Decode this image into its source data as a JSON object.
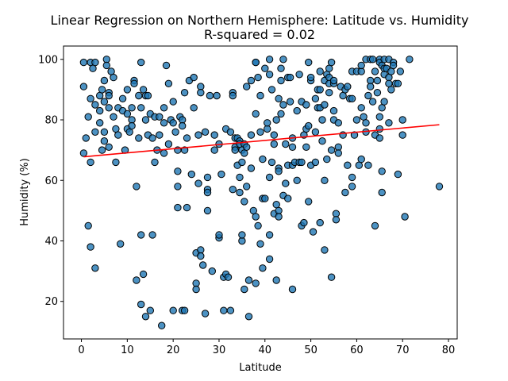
{
  "chart_data": {
    "type": "scatter",
    "title": "Linear Regression on Northern Hemisphere: Latitude vs. Humidity",
    "subtitle": "R-squared = 0.02",
    "xlabel": "Latitude",
    "ylabel": "Humidity (%)",
    "xlim": [
      -3.9,
      81.9
    ],
    "ylim": [
      7.6,
      104.4
    ],
    "xticks": [
      0,
      10,
      20,
      30,
      40,
      50,
      60,
      70,
      80
    ],
    "yticks": [
      20,
      40,
      60,
      80,
      100
    ],
    "grid": false,
    "marker_color": "#1f77b4",
    "line_color": "#ff0000",
    "regression_line": {
      "x": [
        0.5,
        78
      ],
      "y": [
        67.8,
        78.4
      ]
    },
    "points": [
      [
        0.5,
        99
      ],
      [
        0.5,
        91
      ],
      [
        0.5,
        69
      ],
      [
        1,
        74
      ],
      [
        1.5,
        45
      ],
      [
        1.5,
        81
      ],
      [
        2,
        99
      ],
      [
        2,
        87
      ],
      [
        2,
        66
      ],
      [
        2,
        38
      ],
      [
        3,
        99
      ],
      [
        2.5,
        97
      ],
      [
        3,
        31
      ],
      [
        3,
        85
      ],
      [
        3,
        76
      ],
      [
        4,
        88
      ],
      [
        4,
        83
      ],
      [
        4,
        79
      ],
      [
        4.5,
        90
      ],
      [
        4.5,
        70
      ],
      [
        5,
        93
      ],
      [
        5,
        86
      ],
      [
        5,
        76
      ],
      [
        5,
        73
      ],
      [
        5.5,
        100
      ],
      [
        5.5,
        98
      ],
      [
        6,
        84
      ],
      [
        6,
        89
      ],
      [
        6,
        88
      ],
      [
        6,
        71
      ],
      [
        6.5,
        96
      ],
      [
        7,
        94
      ],
      [
        7,
        81
      ],
      [
        7.5,
        66
      ],
      [
        7.5,
        77
      ],
      [
        8,
        84
      ],
      [
        8,
        75
      ],
      [
        8.5,
        39
      ],
      [
        9,
        87
      ],
      [
        9,
        83
      ],
      [
        9.5,
        70
      ],
      [
        10,
        90
      ],
      [
        10,
        82
      ],
      [
        10,
        77
      ],
      [
        10.5,
        76
      ],
      [
        11,
        84
      ],
      [
        11,
        80
      ],
      [
        11,
        78
      ],
      [
        11.5,
        93
      ],
      [
        11.5,
        92
      ],
      [
        12,
        58
      ],
      [
        12,
        27
      ],
      [
        12.5,
        74
      ],
      [
        12.5,
        88
      ],
      [
        13,
        84
      ],
      [
        13,
        19
      ],
      [
        13,
        42
      ],
      [
        13,
        99
      ],
      [
        13.5,
        90
      ],
      [
        13.5,
        29
      ],
      [
        14,
        15
      ],
      [
        14,
        88
      ],
      [
        14,
        80
      ],
      [
        14.5,
        75
      ],
      [
        14.5,
        88
      ],
      [
        15,
        82
      ],
      [
        15,
        17
      ],
      [
        15.5,
        74
      ],
      [
        15.5,
        42
      ],
      [
        16,
        66
      ],
      [
        16,
        81
      ],
      [
        16.5,
        70
      ],
      [
        17,
        81
      ],
      [
        17,
        75
      ],
      [
        17.5,
        12
      ],
      [
        18,
        79
      ],
      [
        18,
        84
      ],
      [
        18,
        69
      ],
      [
        18.5,
        98
      ],
      [
        19,
        92
      ],
      [
        19,
        72
      ],
      [
        19.5,
        80
      ],
      [
        20,
        17
      ],
      [
        20,
        79
      ],
      [
        20,
        86
      ],
      [
        20.5,
        76
      ],
      [
        21,
        70
      ],
      [
        21,
        58
      ],
      [
        21,
        51
      ],
      [
        21,
        63
      ],
      [
        21.5,
        81
      ],
      [
        22,
        80
      ],
      [
        22,
        78
      ],
      [
        22,
        17
      ],
      [
        22.5,
        17
      ],
      [
        22.5,
        70
      ],
      [
        22.5,
        89
      ],
      [
        23,
        51
      ],
      [
        23,
        74
      ],
      [
        23.5,
        93
      ],
      [
        24,
        62
      ],
      [
        24.5,
        94
      ],
      [
        24.5,
        84
      ],
      [
        25,
        26
      ],
      [
        25,
        24
      ],
      [
        25,
        36
      ],
      [
        25.5,
        59
      ],
      [
        25.5,
        75
      ],
      [
        26,
        91
      ],
      [
        26,
        89
      ],
      [
        26,
        37
      ],
      [
        26,
        35
      ],
      [
        26.5,
        32
      ],
      [
        27,
        16
      ],
      [
        27,
        76
      ],
      [
        27.5,
        57
      ],
      [
        27.5,
        61
      ],
      [
        27.5,
        56
      ],
      [
        27.5,
        50
      ],
      [
        28,
        88
      ],
      [
        28.5,
        30
      ],
      [
        29,
        70
      ],
      [
        29,
        75
      ],
      [
        29.5,
        88
      ],
      [
        30,
        41
      ],
      [
        30,
        42
      ],
      [
        30,
        72
      ],
      [
        30.5,
        62
      ],
      [
        31,
        28
      ],
      [
        31,
        17
      ],
      [
        31.5,
        77
      ],
      [
        31.5,
        29
      ],
      [
        32,
        28
      ],
      [
        32.5,
        17
      ],
      [
        32.5,
        76
      ],
      [
        33,
        89
      ],
      [
        33,
        88
      ],
      [
        33,
        57
      ],
      [
        33.5,
        74
      ],
      [
        33.5,
        71
      ],
      [
        33.5,
        70
      ],
      [
        34,
        74
      ],
      [
        34,
        65
      ],
      [
        34.5,
        73
      ],
      [
        34.5,
        72
      ],
      [
        34.5,
        61
      ],
      [
        34.5,
        56
      ],
      [
        35,
        70
      ],
      [
        35,
        40
      ],
      [
        35,
        42
      ],
      [
        35,
        66
      ],
      [
        35.5,
        53
      ],
      [
        35.5,
        24
      ],
      [
        35.5,
        72
      ],
      [
        35.5,
        69
      ],
      [
        36,
        91
      ],
      [
        36,
        71
      ],
      [
        36,
        58
      ],
      [
        36.5,
        27
      ],
      [
        36.5,
        15
      ],
      [
        37,
        64
      ],
      [
        37,
        75
      ],
      [
        37,
        93
      ],
      [
        37.5,
        50
      ],
      [
        38,
        99
      ],
      [
        38,
        99
      ],
      [
        38,
        48
      ],
      [
        38,
        82
      ],
      [
        38,
        26
      ],
      [
        38.5,
        94
      ],
      [
        38.5,
        45
      ],
      [
        39,
        39
      ],
      [
        39,
        76
      ],
      [
        39,
        88
      ],
      [
        39.5,
        67
      ],
      [
        39.5,
        54
      ],
      [
        39.5,
        31
      ],
      [
        40,
        97
      ],
      [
        40,
        54
      ],
      [
        40.5,
        77
      ],
      [
        40.5,
        79
      ],
      [
        41,
        61
      ],
      [
        41,
        42
      ],
      [
        41,
        34
      ],
      [
        41,
        95
      ],
      [
        41,
        100
      ],
      [
        41.5,
        90
      ],
      [
        41.5,
        66
      ],
      [
        42,
        49
      ],
      [
        42,
        72
      ],
      [
        42,
        75
      ],
      [
        42.5,
        80
      ],
      [
        42.5,
        27
      ],
      [
        42.5,
        52
      ],
      [
        43,
        64
      ],
      [
        43,
        87
      ],
      [
        43,
        50
      ],
      [
        43,
        48
      ],
      [
        43,
        63
      ],
      [
        43.5,
        97
      ],
      [
        43.5,
        93
      ],
      [
        43.5,
        82
      ],
      [
        44,
        55
      ],
      [
        44,
        100
      ],
      [
        44,
        85
      ],
      [
        44.5,
        72
      ],
      [
        44.5,
        59
      ],
      [
        45,
        65
      ],
      [
        45,
        54
      ],
      [
        45,
        94
      ],
      [
        45.5,
        94
      ],
      [
        45.5,
        86
      ],
      [
        46,
        71
      ],
      [
        46,
        24
      ],
      [
        46,
        65
      ],
      [
        46,
        74
      ],
      [
        46.5,
        66
      ],
      [
        47,
        60
      ],
      [
        47,
        83
      ],
      [
        47.5,
        95
      ],
      [
        47.5,
        66
      ],
      [
        48,
        45
      ],
      [
        48,
        66
      ],
      [
        48,
        86
      ],
      [
        48.5,
        46
      ],
      [
        48.5,
        75
      ],
      [
        49,
        85
      ],
      [
        49,
        77
      ],
      [
        49,
        71
      ],
      [
        49.5,
        99
      ],
      [
        49.5,
        53
      ],
      [
        49.5,
        78
      ],
      [
        50,
        93
      ],
      [
        50,
        65
      ],
      [
        50,
        94
      ],
      [
        50.5,
        43
      ],
      [
        51,
        87
      ],
      [
        51,
        76
      ],
      [
        51,
        66
      ],
      [
        51.5,
        84
      ],
      [
        51.5,
        90
      ],
      [
        52,
        96
      ],
      [
        52,
        46
      ],
      [
        52,
        84
      ],
      [
        52,
        90
      ],
      [
        52.5,
        73
      ],
      [
        52.5,
        80
      ],
      [
        53,
        85
      ],
      [
        53,
        93
      ],
      [
        53,
        60
      ],
      [
        53,
        37
      ],
      [
        53.5,
        95
      ],
      [
        53.5,
        67
      ],
      [
        54,
        89
      ],
      [
        54,
        94
      ],
      [
        54,
        92
      ],
      [
        54,
        97
      ],
      [
        54.5,
        99
      ],
      [
        54.5,
        70
      ],
      [
        54.5,
        28
      ],
      [
        55,
        92
      ],
      [
        55,
        83
      ],
      [
        55,
        80
      ],
      [
        55,
        93
      ],
      [
        55.5,
        49
      ],
      [
        55.5,
        47
      ],
      [
        56,
        79
      ],
      [
        56,
        71
      ],
      [
        56,
        69
      ],
      [
        56.5,
        91
      ],
      [
        57,
        88
      ],
      [
        57,
        75
      ],
      [
        57.5,
        90
      ],
      [
        57.5,
        56
      ],
      [
        58,
        65
      ],
      [
        58,
        91
      ],
      [
        58.5,
        87
      ],
      [
        59,
        96
      ],
      [
        59,
        87
      ],
      [
        59,
        58
      ],
      [
        59,
        61
      ],
      [
        59.5,
        75
      ],
      [
        60,
        80
      ],
      [
        60,
        96
      ],
      [
        60.5,
        65
      ],
      [
        61,
        96
      ],
      [
        61,
        98
      ],
      [
        61,
        67
      ],
      [
        61,
        84
      ],
      [
        61.5,
        81
      ],
      [
        62,
        100
      ],
      [
        62,
        76
      ],
      [
        62,
        79
      ],
      [
        62.5,
        88
      ],
      [
        62.5,
        65
      ],
      [
        63,
        93
      ],
      [
        63,
        100
      ],
      [
        63,
        91
      ],
      [
        63.5,
        100
      ],
      [
        63.5,
        86
      ],
      [
        64,
        75
      ],
      [
        64,
        45
      ],
      [
        64,
        96
      ],
      [
        64.5,
        89
      ],
      [
        64.5,
        93
      ],
      [
        65,
        74
      ],
      [
        65,
        77
      ],
      [
        65,
        100
      ],
      [
        65,
        99
      ],
      [
        65,
        81
      ],
      [
        65.5,
        98
      ],
      [
        65.5,
        84
      ],
      [
        65.5,
        63
      ],
      [
        65.5,
        56
      ],
      [
        66,
        86
      ],
      [
        66,
        95
      ],
      [
        66,
        97
      ],
      [
        66,
        100
      ],
      [
        66.5,
        97
      ],
      [
        67,
        79
      ],
      [
        67,
        100
      ],
      [
        67,
        94
      ],
      [
        67,
        92
      ],
      [
        67.5,
        90
      ],
      [
        67.5,
        96
      ],
      [
        68,
        99
      ],
      [
        68,
        98
      ],
      [
        68.5,
        92
      ],
      [
        69,
        62
      ],
      [
        69,
        92
      ],
      [
        69.5,
        96
      ],
      [
        70,
        75
      ],
      [
        70,
        80
      ],
      [
        70.5,
        48
      ],
      [
        71.5,
        100
      ],
      [
        78,
        58
      ]
    ]
  }
}
